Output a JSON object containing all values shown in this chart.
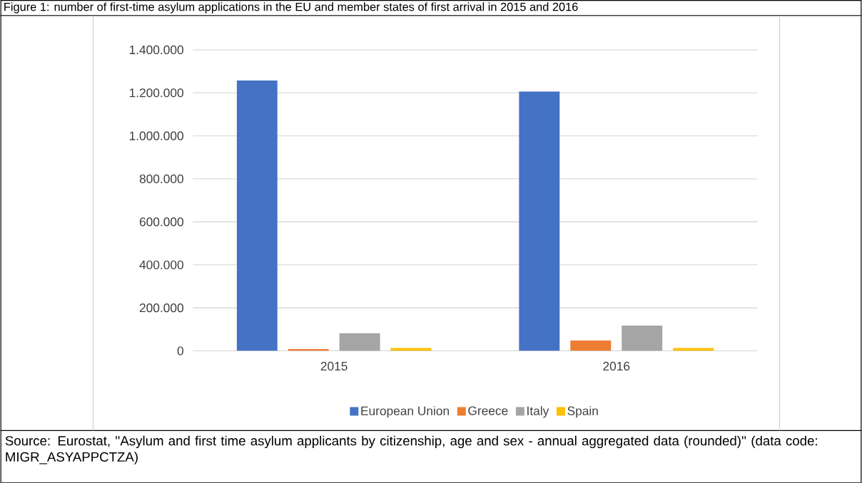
{
  "chart_data": {
    "type": "bar",
    "title": "Figure 1: number of first-time asylum applications in the EU and member states of first arrival in 2015 and 2016",
    "categories": [
      "2015",
      "2016"
    ],
    "series": [
      {
        "name": "European Union",
        "color": "#4472c4",
        "values": [
          1257000,
          1206000
        ]
      },
      {
        "name": "Greece",
        "color": "#ed7d31",
        "values": [
          8000,
          48000
        ]
      },
      {
        "name": "Italy",
        "color": "#a5a5a5",
        "values": [
          82000,
          118000
        ]
      },
      {
        "name": "Spain",
        "color": "#ffc000",
        "values": [
          13000,
          13000
        ]
      }
    ],
    "ylim": [
      0,
      1400000
    ],
    "yticks": [
      0,
      {
        "value": 200000,
        "label": "200.000"
      },
      {
        "value": 400000,
        "label": "400.000"
      },
      {
        "value": 600000,
        "label": "600.000"
      },
      {
        "value": 800000,
        "label": "800.000"
      },
      {
        "value": 1000000,
        "label": "1.000.000"
      },
      {
        "value": 1200000,
        "label": "1.200.000"
      },
      {
        "value": 1400000,
        "label": "1.400.000"
      }
    ],
    "grid": "y",
    "legend": "bottom",
    "annotations": [
      "Source: Eurostat, ''Asylum and first time asylum applicants by citizenship, age and sex - annual aggregated data (rounded)'' (data code: MIGR_ASYAPPCTZA)"
    ]
  }
}
